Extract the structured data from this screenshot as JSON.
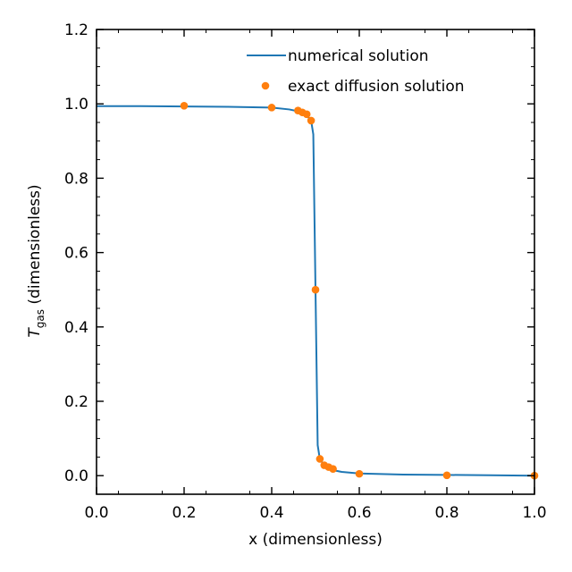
{
  "chart_data": {
    "type": "line",
    "title": "",
    "xlabel": "x (dimensionless)",
    "ylabel_main": "T",
    "ylabel_sub": "gas",
    "ylabel_rest": " (dimensionless)",
    "xlim": [
      0.0,
      1.0
    ],
    "ylim": [
      -0.05,
      1.2
    ],
    "x_ticks": [
      "0.0",
      "0.2",
      "0.4",
      "0.6",
      "0.8",
      "1.0"
    ],
    "y_ticks": [
      "0.0",
      "0.2",
      "0.4",
      "0.6",
      "0.8",
      "1.0",
      "1.2"
    ],
    "grid": false,
    "legend_position": "top-right",
    "colors": {
      "line": "#1f77b4",
      "points": "#ff7f0e"
    },
    "series": [
      {
        "name": "numerical solution",
        "kind": "line",
        "x": [
          0.0,
          0.1,
          0.2,
          0.3,
          0.4,
          0.44,
          0.46,
          0.47,
          0.48,
          0.485,
          0.49,
          0.495,
          0.5,
          0.505,
          0.51,
          0.52,
          0.53,
          0.54,
          0.56,
          0.6,
          0.7,
          0.8,
          0.9,
          1.0
        ],
        "y": [
          0.994,
          0.994,
          0.993,
          0.992,
          0.99,
          0.985,
          0.98,
          0.975,
          0.968,
          0.962,
          0.955,
          0.918,
          0.5,
          0.082,
          0.044,
          0.028,
          0.02,
          0.015,
          0.01,
          0.006,
          0.003,
          0.002,
          0.001,
          0.0
        ]
      },
      {
        "name": "exact diffusion solution",
        "kind": "scatter",
        "x": [
          0.2,
          0.4,
          0.46,
          0.47,
          0.48,
          0.49,
          0.5,
          0.51,
          0.52,
          0.53,
          0.54,
          0.6,
          0.8,
          1.0
        ],
        "y": [
          0.995,
          0.99,
          0.982,
          0.977,
          0.972,
          0.955,
          0.5,
          0.045,
          0.028,
          0.023,
          0.018,
          0.005,
          0.001,
          0.0
        ]
      }
    ]
  }
}
